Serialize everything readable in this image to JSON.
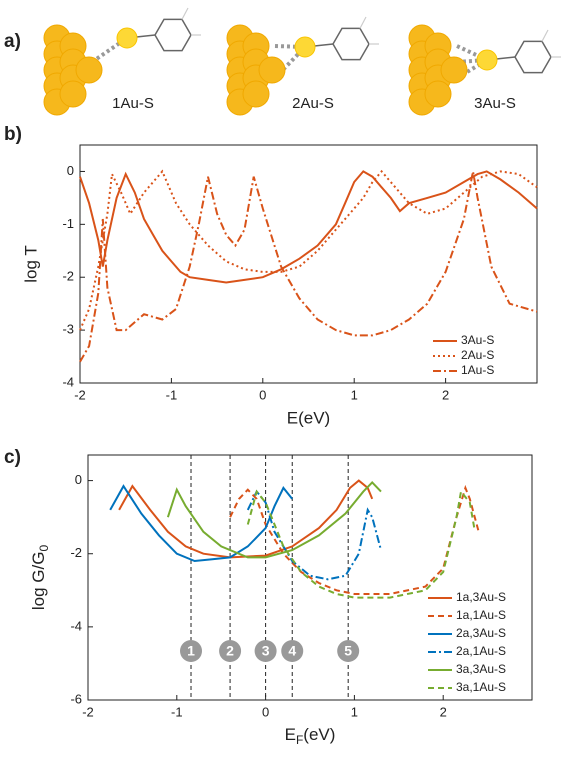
{
  "panel_a": {
    "label": "a)",
    "structures": [
      "1Au-S",
      "2Au-S",
      "3Au-S"
    ]
  },
  "chart_data": [
    {
      "type": "line",
      "panel_label": "b)",
      "xlabel": "E(eV)",
      "ylabel": "log T",
      "xlim": [
        -2,
        3
      ],
      "ylim": [
        -4,
        0.5
      ],
      "xticks": [
        -2,
        -1,
        0,
        1,
        2
      ],
      "yticks": [
        0,
        -1,
        -2,
        -3,
        -4
      ],
      "legend": "lower right",
      "series": [
        {
          "name": "3Au-S",
          "color": "#d95319",
          "linestyle": "solid",
          "x": [
            -2,
            -1.9,
            -1.8,
            -1.75,
            -1.7,
            -1.6,
            -1.5,
            -1.4,
            -1.3,
            -1.2,
            -1.1,
            -1,
            -0.9,
            -0.8,
            -0.6,
            -0.4,
            -0.2,
            0,
            0.2,
            0.4,
            0.6,
            0.8,
            0.9,
            1.0,
            1.1,
            1.2,
            1.3,
            1.4,
            1.5,
            1.6,
            1.8,
            2.0,
            2.2,
            2.35,
            2.45,
            2.6,
            2.8,
            3.0
          ],
          "values": [
            -0.1,
            -0.6,
            -1.3,
            -1.8,
            -1.3,
            -0.5,
            -0.05,
            -0.4,
            -0.9,
            -1.2,
            -1.5,
            -1.7,
            -1.9,
            -2.0,
            -2.05,
            -2.1,
            -2.05,
            -2.0,
            -1.85,
            -1.65,
            -1.4,
            -1.0,
            -0.6,
            -0.2,
            0,
            -0.1,
            -0.3,
            -0.5,
            -0.75,
            -0.6,
            -0.5,
            -0.4,
            -0.2,
            -0.05,
            0,
            -0.15,
            -0.4,
            -0.7
          ]
        },
        {
          "name": "2Au-S",
          "color": "#d95319",
          "linestyle": "dotted",
          "x": [
            -2,
            -1.9,
            -1.8,
            -1.7,
            -1.65,
            -1.55,
            -1.45,
            -1.3,
            -1.1,
            -0.95,
            -0.8,
            -0.6,
            -0.4,
            -0.2,
            0,
            0.2,
            0.4,
            0.6,
            0.8,
            1.0,
            1.1,
            1.2,
            1.3,
            1.45,
            1.6,
            1.8,
            2.0,
            2.2,
            2.4,
            2.6,
            2.8,
            3.0
          ],
          "values": [
            -3.0,
            -2.6,
            -1.8,
            -0.8,
            -0.05,
            -0.4,
            -0.8,
            -0.4,
            0,
            -0.6,
            -1.0,
            -1.4,
            -1.7,
            -1.85,
            -1.9,
            -1.9,
            -1.8,
            -1.5,
            -1.1,
            -0.7,
            -0.5,
            -0.2,
            0,
            -0.3,
            -0.6,
            -0.8,
            -0.7,
            -0.4,
            -0.1,
            0,
            -0.05,
            -0.3
          ]
        },
        {
          "name": "1Au-S",
          "color": "#d95319",
          "linestyle": "dashdot",
          "x": [
            -2,
            -1.9,
            -1.8,
            -1.75,
            -1.7,
            -1.6,
            -1.5,
            -1.3,
            -1.1,
            -0.95,
            -0.8,
            -0.7,
            -0.6,
            -0.5,
            -0.4,
            -0.3,
            -0.2,
            -0.1,
            0,
            0.2,
            0.4,
            0.6,
            0.8,
            1.0,
            1.2,
            1.4,
            1.6,
            1.8,
            2.0,
            2.2,
            2.3,
            2.35,
            2.5,
            2.7,
            2.9,
            3.0
          ],
          "values": [
            -3.6,
            -3.3,
            -2.3,
            -0.9,
            -2.2,
            -3.0,
            -3.0,
            -2.7,
            -2.8,
            -2.6,
            -1.8,
            -1.0,
            -0.1,
            -0.8,
            -1.2,
            -1.4,
            -1.1,
            -0.1,
            -0.7,
            -1.8,
            -2.4,
            -2.8,
            -3.0,
            -3.1,
            -3.1,
            -3.0,
            -2.8,
            -2.5,
            -1.9,
            -0.9,
            0,
            -0.5,
            -1.8,
            -2.5,
            -2.6,
            -2.65
          ]
        }
      ]
    },
    {
      "type": "line",
      "panel_label": "c)",
      "xlabel": {
        "text": "E",
        "sub": "F",
        "after": "(eV)"
      },
      "ylabel": {
        "text": "log G/G",
        "sub": "0",
        "after": ""
      },
      "xlim": [
        -2,
        3
      ],
      "ylim": [
        -6,
        0.7
      ],
      "xticks": [
        -2,
        -1,
        0,
        1,
        2
      ],
      "yticks": [
        0,
        -2,
        -4,
        -6
      ],
      "legend": "lower right",
      "annotations": [
        {
          "x": -0.84,
          "label": "1"
        },
        {
          "x": -0.4,
          "label": "2"
        },
        {
          "x": 0,
          "label": "3"
        },
        {
          "x": 0.3,
          "label": "4"
        },
        {
          "x": 0.93,
          "label": "5"
        }
      ],
      "series": [
        {
          "name": "1a,3Au-S",
          "color": "#d95319",
          "linestyle": "solid",
          "x": [
            -1.65,
            -1.5,
            -1.3,
            -1.1,
            -0.9,
            -0.7,
            -0.4,
            0,
            0.3,
            0.6,
            0.8,
            0.95,
            1.05,
            1.15,
            1.2
          ],
          "values": [
            -0.8,
            -0.15,
            -0.8,
            -1.4,
            -1.8,
            -2.0,
            -2.1,
            -2.05,
            -1.8,
            -1.3,
            -0.8,
            -0.2,
            0,
            -0.2,
            -0.5
          ]
        },
        {
          "name": "1a,1Au-S",
          "color": "#d95319",
          "linestyle": "dashed",
          "x": [
            -0.4,
            -0.3,
            -0.2,
            -0.1,
            0,
            0.2,
            0.4,
            0.6,
            0.8,
            1.0,
            1.4,
            1.8,
            2.0,
            2.15,
            2.25,
            2.3,
            2.4
          ],
          "values": [
            -1.0,
            -0.5,
            -0.25,
            -0.5,
            -1.2,
            -2.0,
            -2.5,
            -2.8,
            -3.0,
            -3.1,
            -3.1,
            -2.9,
            -2.4,
            -1.0,
            -0.2,
            -0.5,
            -1.4
          ]
        },
        {
          "name": "2a,3Au-S",
          "color": "#0072bd",
          "linestyle": "solid",
          "x": [
            -1.75,
            -1.6,
            -1.4,
            -1.2,
            -1.0,
            -0.8,
            -0.6,
            -0.4,
            -0.2,
            0,
            0.1,
            0.2,
            0.3
          ],
          "values": [
            -0.8,
            -0.15,
            -0.9,
            -1.5,
            -2.0,
            -2.2,
            -2.15,
            -2.1,
            -1.8,
            -1.3,
            -0.7,
            -0.2,
            -0.5
          ]
        },
        {
          "name": "2a,1Au-S",
          "color": "#0072bd",
          "linestyle": "dashdot",
          "x": [
            -0.2,
            -0.1,
            0,
            0.1,
            0.3,
            0.5,
            0.7,
            0.9,
            1.05,
            1.15,
            1.2,
            1.3
          ],
          "values": [
            -0.8,
            -0.3,
            -0.6,
            -1.4,
            -2.2,
            -2.6,
            -2.7,
            -2.6,
            -2.0,
            -0.8,
            -1.0,
            -1.9
          ]
        },
        {
          "name": "3a,3Au-S",
          "color": "#77ac30",
          "linestyle": "solid",
          "x": [
            -1.1,
            -1.0,
            -0.9,
            -0.7,
            -0.5,
            -0.2,
            0,
            0.3,
            0.6,
            0.9,
            1.1,
            1.2,
            1.3
          ],
          "values": [
            -1.0,
            -0.25,
            -0.7,
            -1.4,
            -1.8,
            -2.1,
            -2.1,
            -1.9,
            -1.5,
            -0.9,
            -0.3,
            -0.05,
            -0.3
          ]
        },
        {
          "name": "3a,1Au-S",
          "color": "#77ac30",
          "linestyle": "dashed",
          "x": [
            -0.2,
            -0.1,
            0,
            0.2,
            0.4,
            0.6,
            0.8,
            1.0,
            1.4,
            1.8,
            2.0,
            2.15,
            2.2,
            2.3,
            2.35
          ],
          "values": [
            -1.2,
            -0.3,
            -0.6,
            -1.8,
            -2.5,
            -2.9,
            -3.1,
            -3.2,
            -3.2,
            -3.0,
            -2.5,
            -1.0,
            -0.3,
            -0.6,
            -1.3
          ]
        }
      ]
    }
  ]
}
